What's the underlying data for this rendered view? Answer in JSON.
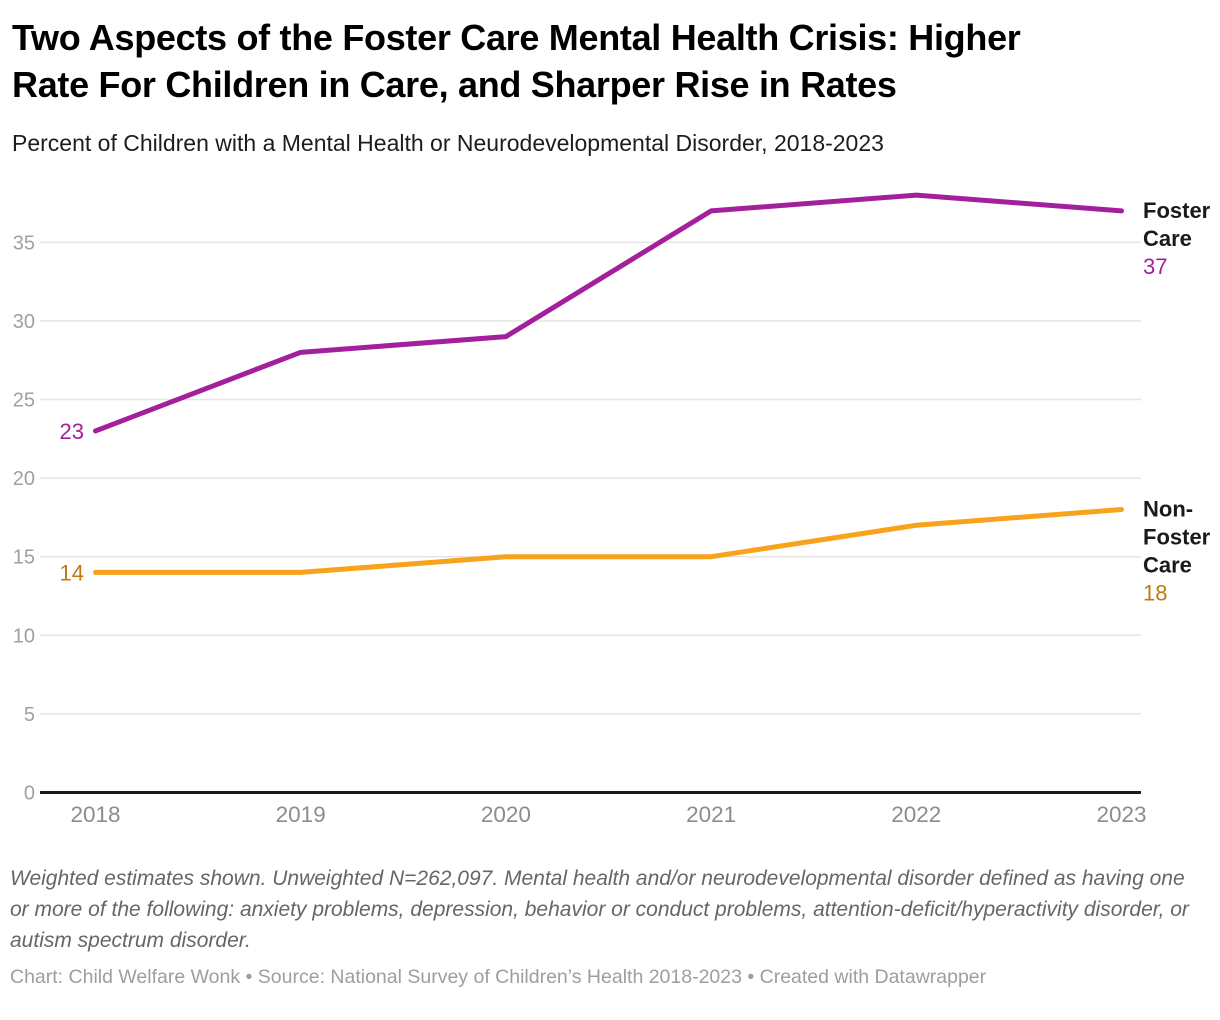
{
  "header": {
    "title_lines": [
      "Two Aspects of the Foster Care Mental Health Crisis: Higher",
      "Rate For Children in Care, and Sharper Rise in Rates"
    ],
    "subtitle": "Percent of Children with a Mental Health or Neurodevelopmental Disorder, 2018-2023"
  },
  "chart_data": {
    "type": "line",
    "title": "Two Aspects of the Foster Care Mental Health Crisis: Higher Rate For Children in Care, and Sharper Rise in Rates",
    "subtitle": "Percent of Children with a Mental Health or Neurodevelopmental Disorder, 2018-2023",
    "x": [
      "2018",
      "2019",
      "2020",
      "2021",
      "2022",
      "2023"
    ],
    "series": [
      {
        "name": "Foster Care",
        "values": [
          23,
          28,
          29,
          37,
          38,
          37
        ],
        "color": "#a31f9b",
        "label_color": "#a31f9b",
        "label_lines": [
          "Foster",
          "Care"
        ],
        "start_label": "23",
        "end_label": "37"
      },
      {
        "name": "Non-Foster Care",
        "values": [
          14,
          14,
          15,
          15,
          17,
          18
        ],
        "color": "#f9a21b",
        "label_color": "#c17a10",
        "label_lines": [
          "Non-",
          "Foster",
          "Care"
        ],
        "start_label": "14",
        "end_label": "18"
      }
    ],
    "xlabel": "",
    "ylabel": "",
    "ylim": [
      0,
      38.8
    ],
    "yticks": [
      0,
      5,
      10,
      15,
      20,
      25,
      30,
      35
    ],
    "grid": true,
    "legend_position": "direct-labels-right",
    "colors": {
      "gridline": "#e5e5e5",
      "baseline": "#1a1a1a",
      "ytick_text": "#a0a0a0",
      "xtick_text": "#8c8c8c",
      "series_label_text": "#1a1a1a"
    }
  },
  "footer": {
    "note": "Weighted estimates shown. Unweighted N=262,097. Mental health and/or neurodevelopmental disorder defined as having one or more of the following: anxiety problems, depression, behavior or conduct problems, attention-deficit/hyperactivity disorder, or autism spectrum disorder.",
    "credit": "Chart: Child Welfare Wonk • Source: National Survey of Children’s Health 2018-2023 • Created with Datawrapper"
  }
}
